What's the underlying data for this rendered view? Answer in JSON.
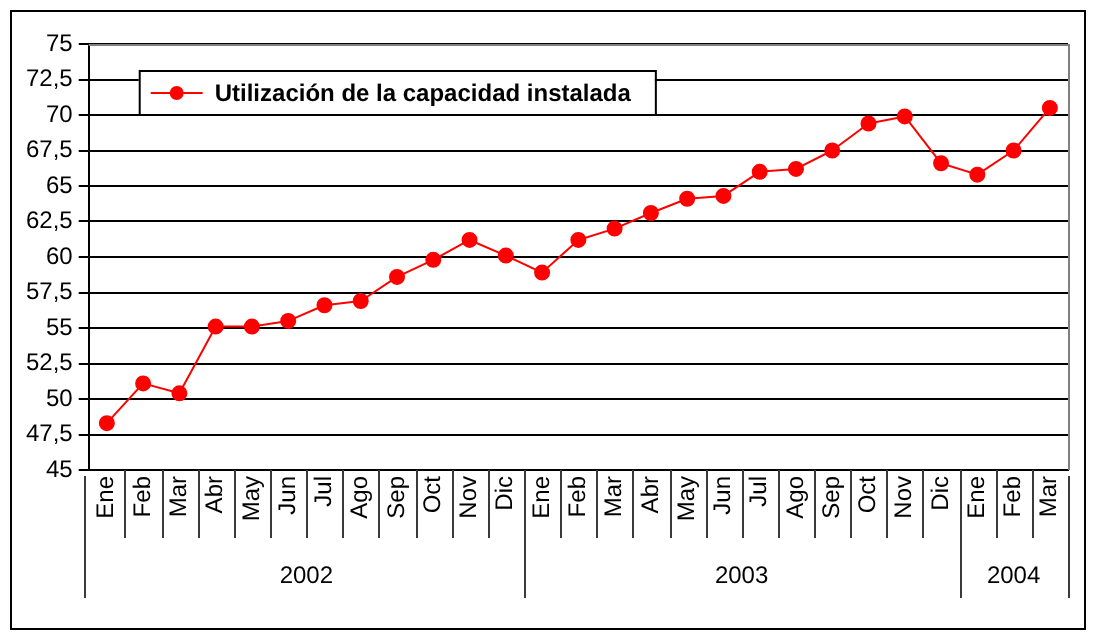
{
  "chart_data": {
    "type": "line",
    "categories": [
      "Ene",
      "Feb",
      "Mar",
      "Abr",
      "May",
      "Jun",
      "Jul",
      "Ago",
      "Sep",
      "Oct",
      "Nov",
      "Dic",
      "Ene",
      "Feb",
      "Mar",
      "Abr",
      "May",
      "Jun",
      "Jul",
      "Ago",
      "Sep",
      "Oct",
      "Nov",
      "Dic",
      "Ene",
      "Feb",
      "Mar"
    ],
    "series": [
      {
        "name": "Utilización de la capacidad instalada",
        "color": "#ff0000",
        "values": [
          48.3,
          51.1,
          50.4,
          55.1,
          55.1,
          55.5,
          56.6,
          56.9,
          58.6,
          59.8,
          61.2,
          60.1,
          58.9,
          61.2,
          62.0,
          63.1,
          64.1,
          64.3,
          66.0,
          66.2,
          67.5,
          69.4,
          69.9,
          66.6,
          65.8,
          67.5,
          70.5
        ]
      }
    ],
    "annotations": [
      "2002",
      "2003",
      "2004"
    ],
    "ylim": [
      45,
      75
    ],
    "yticks": [
      45,
      {
        "value": 47.5,
        "label": "47,5"
      },
      50,
      {
        "value": 52.5,
        "label": "52,5"
      },
      55,
      {
        "value": 57.5,
        "label": "57,5"
      },
      60,
      {
        "value": 62.5,
        "label": "62,5"
      },
      65,
      {
        "value": 67.5,
        "label": "67,5"
      },
      70,
      {
        "value": 72.5,
        "label": "72,5"
      },
      75
    ],
    "grid": "y",
    "legend": "top left",
    "marker": "circle",
    "line_style": "solid"
  }
}
